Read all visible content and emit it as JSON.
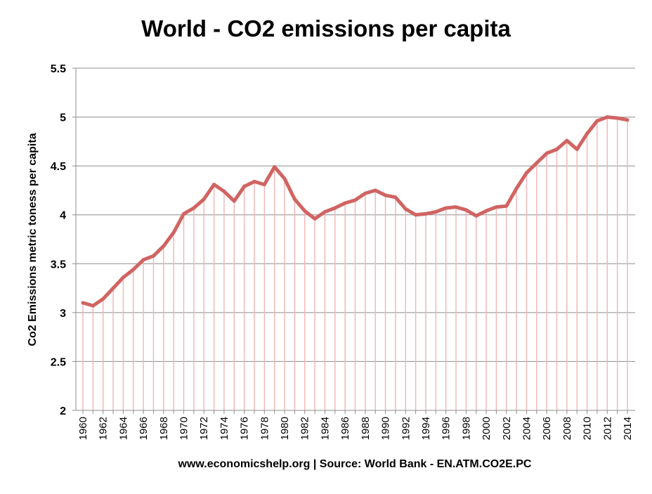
{
  "chart_data": {
    "type": "line",
    "title": "World - CO2 emissions per capita",
    "ylabel": "Co2 Emissions metric toness per capita",
    "xlabel": "",
    "source": "www.economicshelp.org | Source: World Bank - EN.ATM.CO2E.PC",
    "ylim": [
      2,
      5.5
    ],
    "yticks": [
      "2",
      "2.5",
      "3",
      "3.5",
      "4",
      "4.5",
      "5",
      "5.5"
    ],
    "xticks": [
      "1960",
      "1962",
      "1964",
      "1966",
      "1968",
      "1970",
      "1972",
      "1974",
      "1976",
      "1978",
      "1980",
      "1982",
      "1984",
      "1986",
      "1988",
      "1990",
      "1992",
      "1994",
      "1996",
      "1998",
      "2000",
      "2002",
      "2004",
      "2006",
      "2008",
      "2010",
      "2012",
      "2014"
    ],
    "grid": true,
    "line_color": "#d06462",
    "drop_line_color": "#efb5b4",
    "x": [
      1960,
      1961,
      1962,
      1963,
      1964,
      1965,
      1966,
      1967,
      1968,
      1969,
      1970,
      1971,
      1972,
      1973,
      1974,
      1975,
      1976,
      1977,
      1978,
      1979,
      1980,
      1981,
      1982,
      1983,
      1984,
      1985,
      1986,
      1987,
      1988,
      1989,
      1990,
      1991,
      1992,
      1993,
      1994,
      1995,
      1996,
      1997,
      1998,
      1999,
      2000,
      2001,
      2002,
      2003,
      2004,
      2005,
      2006,
      2007,
      2008,
      2009,
      2010,
      2011,
      2012,
      2013,
      2014
    ],
    "values": [
      3.1,
      3.07,
      3.14,
      3.25,
      3.36,
      3.44,
      3.54,
      3.58,
      3.68,
      3.82,
      4.01,
      4.07,
      4.16,
      4.31,
      4.24,
      4.14,
      4.29,
      4.34,
      4.31,
      4.49,
      4.37,
      4.16,
      4.04,
      3.96,
      4.03,
      4.07,
      4.12,
      4.15,
      4.22,
      4.25,
      4.2,
      4.18,
      4.06,
      4.0,
      4.01,
      4.03,
      4.07,
      4.08,
      4.05,
      3.99,
      4.04,
      4.08,
      4.09,
      4.27,
      4.43,
      4.53,
      4.63,
      4.67,
      4.76,
      4.67,
      4.83,
      4.96,
      5.0,
      4.99,
      4.97
    ]
  }
}
